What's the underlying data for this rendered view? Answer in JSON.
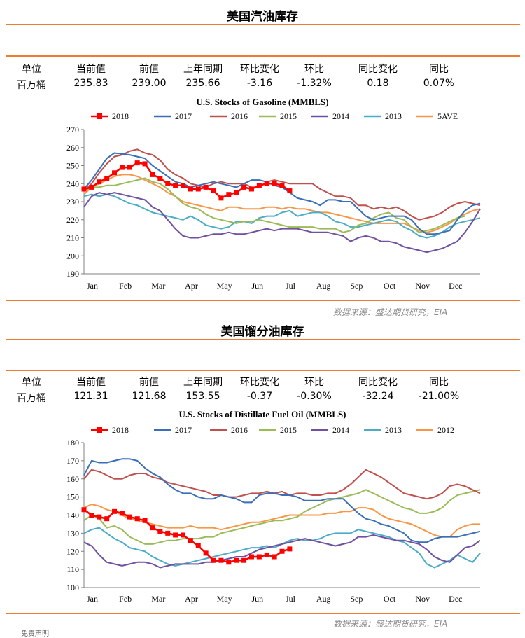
{
  "panels": [
    {
      "title": "美国汽油库存",
      "table": {
        "headers": [
          "单位",
          "当前值",
          "前值",
          "上年同期",
          "环比变化",
          "环比",
          "同比变化",
          "同比"
        ],
        "values": [
          "百万桶",
          "235.83",
          "239.00",
          "235.66",
          "-3.16",
          "-1.32%",
          "0.18",
          "0.07%"
        ]
      },
      "source": "数据来源：盛达期货研究，EIA"
    },
    {
      "title": "美国馏分油库存",
      "table": {
        "headers": [
          "单位",
          "当前值",
          "前值",
          "上年同期",
          "环比变化",
          "环比",
          "同比变化",
          "同比"
        ],
        "values": [
          "百万桶",
          "121.31",
          "121.68",
          "153.55",
          "-0.37",
          "-0.30%",
          "-32.24",
          "-21.00%"
        ]
      },
      "source": "数据来源：盛达期货研究，EIA"
    }
  ],
  "footer_note": "免责声明",
  "chart_data": [
    {
      "type": "line",
      "title": "U.S. Stocks of Gasoline (MMBLS)",
      "xlabel": "",
      "ylabel": "",
      "ylim": [
        190,
        270
      ],
      "yticks": [
        190,
        200,
        210,
        220,
        230,
        240,
        250,
        260,
        270
      ],
      "month_labels": [
        "Jan",
        "Feb",
        "Mar",
        "Apr",
        "May",
        "Jun",
        "Jul",
        "Aug",
        "Sep",
        "Oct",
        "Nov",
        "Dec"
      ],
      "x_unit": "week",
      "x_max": 52,
      "grid": false,
      "legend_position": "top",
      "series": [
        {
          "name": "2018",
          "color": "#FF0000",
          "marker": "square",
          "values": [
            237,
            238,
            241,
            243,
            246,
            249,
            249,
            251.5,
            251,
            245,
            243,
            240,
            239,
            239,
            237,
            237,
            238,
            236,
            232,
            234,
            235,
            238,
            237,
            239,
            240,
            240,
            239,
            236
          ]
        },
        {
          "name": "2017",
          "color": "#3A6FB8",
          "values": [
            237,
            242,
            248,
            254,
            257,
            256.5,
            256,
            255,
            254,
            250,
            247,
            244,
            241,
            240,
            238,
            239,
            240,
            241,
            240,
            239,
            238,
            240,
            242,
            242,
            241,
            239,
            238,
            235,
            232,
            231,
            230,
            228,
            231,
            231,
            230,
            230,
            226,
            222,
            220,
            221,
            222,
            222,
            222,
            220,
            215,
            212,
            212,
            213,
            214,
            220,
            225,
            228,
            229
          ]
        },
        {
          "name": "2016",
          "color": "#C0504D",
          "values": [
            236,
            240,
            246,
            251,
            255,
            256,
            258,
            259,
            257,
            256,
            253,
            248,
            245,
            243,
            240,
            239,
            238,
            240,
            241,
            240,
            240,
            240,
            238,
            238,
            241,
            242,
            241,
            240,
            240,
            240,
            240,
            237,
            235,
            233,
            233,
            232,
            228,
            228,
            226,
            227,
            226,
            227,
            225,
            222,
            220,
            221,
            222,
            224,
            227,
            229,
            230,
            229,
            228
          ]
        },
        {
          "name": "2015",
          "color": "#9BBB59",
          "values": [
            236,
            238,
            238,
            239,
            239,
            240,
            241,
            242,
            243,
            241,
            240,
            237,
            233,
            229,
            227,
            226,
            223,
            221,
            220,
            219,
            218,
            219,
            219,
            220,
            219,
            218,
            217,
            216,
            216,
            216,
            216,
            215,
            215,
            215,
            213,
            214,
            217,
            218,
            221,
            223,
            224,
            221,
            220,
            216,
            213,
            214,
            215,
            217,
            219,
            221,
            222
          ]
        },
        {
          "name": "2014",
          "color": "#7050A0",
          "values": [
            227,
            233,
            235,
            234,
            235,
            234,
            233,
            232,
            231,
            227,
            225,
            220,
            215,
            211,
            210,
            210,
            211,
            212,
            212,
            213,
            212,
            212,
            213,
            214,
            215,
            214,
            215,
            215,
            215,
            214,
            213,
            213,
            213,
            212,
            211,
            208,
            210,
            211,
            210,
            208,
            208,
            207,
            205,
            204,
            203,
            202,
            203,
            204,
            206,
            208,
            213,
            219,
            226
          ]
        },
        {
          "name": "2013",
          "color": "#4BACC6",
          "values": [
            233,
            234,
            233,
            234,
            233,
            231,
            229,
            228,
            226,
            224,
            223,
            222,
            221,
            220,
            222,
            220,
            217,
            216,
            215,
            216,
            219,
            219,
            218,
            221,
            222,
            222,
            224,
            225,
            222,
            223,
            224,
            224,
            222,
            219,
            218,
            216,
            216,
            217,
            218,
            219,
            220,
            219,
            216,
            214,
            211,
            210,
            211,
            213,
            216,
            218,
            219,
            220,
            221
          ]
        },
        {
          "name": "5AVE",
          "color": "#F79646",
          "values": [
            234,
            238,
            240,
            242,
            244,
            245,
            245,
            244,
            242,
            240,
            238,
            235,
            233,
            230,
            229,
            228,
            227,
            226,
            225,
            227,
            227,
            226,
            226,
            226,
            227,
            227,
            226,
            227,
            226,
            226,
            225,
            224,
            224,
            223,
            222,
            221,
            220,
            219,
            218,
            218,
            218,
            218,
            218,
            216,
            214,
            213,
            214,
            216,
            218,
            221,
            223,
            225,
            226
          ]
        }
      ]
    },
    {
      "type": "line",
      "title": "U.S. Stocks of Distillate Fuel Oil (MMBLS)",
      "xlabel": "",
      "ylabel": "",
      "ylim": [
        100,
        180
      ],
      "yticks": [
        100,
        110,
        120,
        130,
        140,
        150,
        160,
        170,
        180
      ],
      "month_labels": [
        "Jan",
        "Feb",
        "Mar",
        "Apr",
        "May",
        "Jun",
        "Jul",
        "Aug",
        "Sep",
        "Oct",
        "Nov",
        "Dec"
      ],
      "x_unit": "week",
      "x_max": 52,
      "grid": false,
      "legend_position": "top",
      "series": [
        {
          "name": "2018",
          "color": "#FF0000",
          "marker": "square",
          "values": [
            143,
            140,
            139,
            138,
            142,
            141,
            139,
            138,
            137,
            133,
            131,
            130,
            129,
            129,
            126,
            123,
            119,
            115,
            115,
            114,
            115,
            115,
            117,
            117,
            118,
            117,
            120,
            121.3
          ]
        },
        {
          "name": "2017",
          "color": "#3A6FB8",
          "values": [
            162,
            170,
            169,
            169,
            170,
            171,
            171,
            170,
            166,
            163,
            161,
            157,
            154,
            152,
            152,
            150,
            149,
            149,
            151,
            150,
            149,
            147,
            147,
            151,
            152,
            152,
            151,
            151,
            150,
            148,
            148,
            148,
            149,
            149,
            149,
            145,
            141,
            138,
            137,
            135,
            134,
            132,
            130,
            126,
            125,
            125,
            127,
            128,
            128,
            128,
            129,
            130,
            131
          ]
        },
        {
          "name": "2016",
          "color": "#C0504D",
          "values": [
            160,
            165,
            164,
            162,
            160,
            160,
            162,
            163,
            163,
            161,
            160,
            158,
            157,
            156,
            155,
            154,
            153,
            151,
            151,
            150,
            150,
            151,
            152,
            152,
            153,
            152,
            153,
            151,
            152,
            152,
            151,
            151,
            152,
            152,
            154,
            157,
            161,
            165,
            163,
            161,
            158,
            155,
            152,
            151,
            150,
            149,
            150,
            152,
            156,
            157,
            156,
            154,
            152
          ]
        },
        {
          "name": "2015",
          "color": "#9BBB59",
          "values": [
            137,
            140,
            138,
            133,
            134,
            132,
            128,
            126,
            124,
            124,
            125,
            126,
            126,
            127,
            127,
            127,
            128,
            128,
            130,
            131,
            132,
            133,
            134,
            135,
            136,
            137,
            137,
            138,
            139,
            142,
            144,
            146,
            148,
            149,
            150,
            151,
            152,
            154,
            152,
            150,
            148,
            146,
            144,
            143,
            141,
            141,
            142,
            144,
            148,
            151,
            152,
            153,
            154
          ]
        },
        {
          "name": "2014",
          "color": "#7050A0",
          "values": [
            125,
            123,
            118,
            114,
            113,
            112,
            113,
            114,
            114,
            113,
            111,
            112,
            113,
            113,
            113,
            113,
            114,
            114,
            115,
            116,
            117,
            117,
            119,
            121,
            122,
            123,
            124,
            125,
            126,
            127,
            126,
            125,
            124,
            123,
            124,
            125,
            128,
            128,
            129,
            128,
            127,
            126,
            126,
            125,
            124,
            121,
            117,
            115,
            114,
            118,
            122,
            123,
            126
          ]
        },
        {
          "name": "2013",
          "color": "#4BACC6",
          "values": [
            130,
            132,
            133,
            130,
            127,
            125,
            122,
            121,
            120,
            117,
            115,
            113,
            112,
            113,
            114,
            115,
            116,
            117,
            118,
            119,
            120,
            121,
            122,
            122,
            123,
            122,
            124,
            126,
            127,
            126,
            126,
            127,
            129,
            130,
            130,
            130,
            132,
            131,
            130,
            129,
            128,
            126,
            125,
            122,
            119,
            113,
            111,
            113,
            115,
            118,
            116,
            114,
            119
          ]
        },
        {
          "name": "2012",
          "color": "#F79646",
          "values": [
            144,
            146,
            145,
            143,
            142,
            140,
            138,
            137,
            136,
            135,
            134,
            133,
            133,
            133,
            134,
            133,
            133,
            133,
            132,
            133,
            134,
            135,
            136,
            136,
            137,
            138,
            139,
            140,
            140,
            140,
            140,
            140,
            141,
            141,
            142,
            142,
            144,
            144,
            143,
            140,
            138,
            137,
            136,
            135,
            133,
            131,
            129,
            128,
            128,
            132,
            134,
            135,
            135
          ]
        }
      ]
    }
  ]
}
